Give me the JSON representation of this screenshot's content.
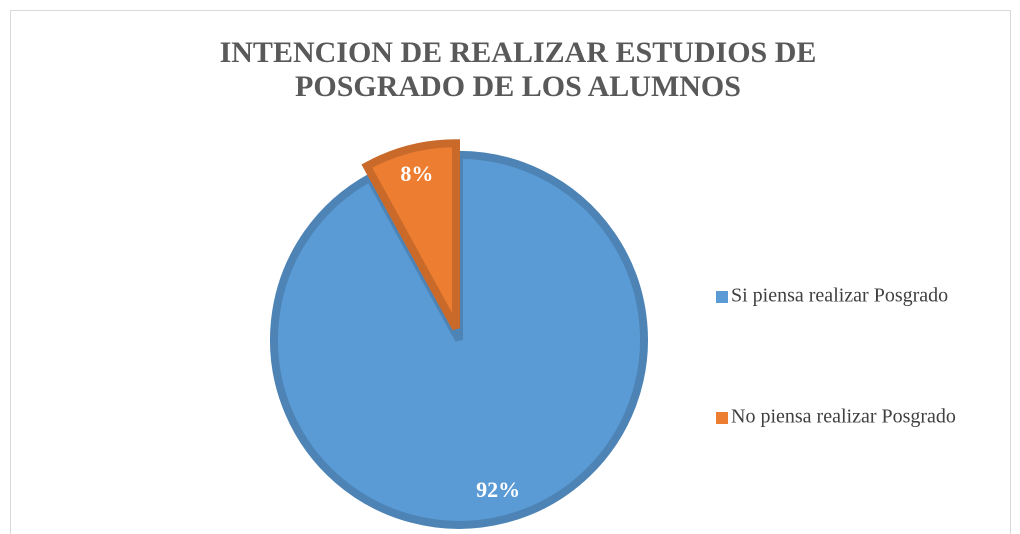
{
  "chart_data": {
    "type": "pie",
    "title": [
      "INTENCION DE REALIZAR ESTUDIOS DE",
      "POSGRADO DE LOS ALUMNOS"
    ],
    "categories": [
      "Si piensa realizar Posgrado",
      "No piensa realizar Posgrado"
    ],
    "values": [
      92,
      8
    ],
    "value_labels": [
      "92%",
      "8%"
    ],
    "colors": [
      "#5b9bd5",
      "#ed7d31"
    ],
    "legend": "right"
  }
}
